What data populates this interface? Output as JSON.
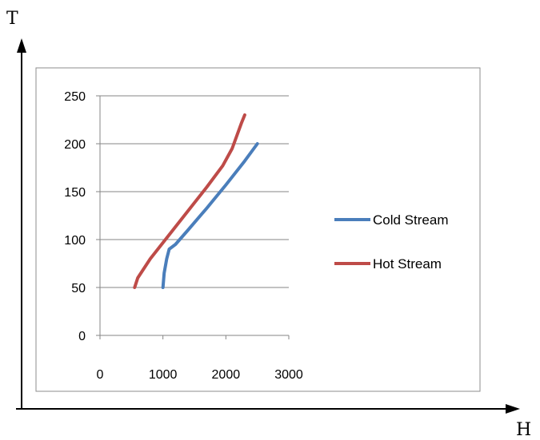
{
  "outer_axes": {
    "y_letter": "T",
    "x_letter": "H"
  },
  "chart_data": {
    "type": "line",
    "title": "",
    "xlabel": "",
    "ylabel": "",
    "xlim": [
      0,
      3000
    ],
    "ylim": [
      0,
      250
    ],
    "x_ticks": [
      "0",
      "1000",
      "2000",
      "3000"
    ],
    "y_ticks": [
      "0",
      "50",
      "100",
      "150",
      "200",
      "250"
    ],
    "grid": "horizontal",
    "legend_position": "right",
    "series": [
      {
        "name": "Cold Stream",
        "color": "#4a7ebb",
        "x": [
          1000,
          1020,
          1060,
          1100,
          1200,
          1400,
          1700,
          2000,
          2300,
          2500
        ],
        "y": [
          50,
          65,
          80,
          90,
          95,
          110,
          133,
          157,
          182,
          200
        ]
      },
      {
        "name": "Hot Stream",
        "color": "#be4b48",
        "x": [
          550,
          600,
          800,
          1100,
          1400,
          1700,
          1950,
          2100,
          2250,
          2300
        ],
        "y": [
          50,
          60,
          80,
          105,
          130,
          155,
          177,
          195,
          222,
          230
        ]
      }
    ]
  }
}
